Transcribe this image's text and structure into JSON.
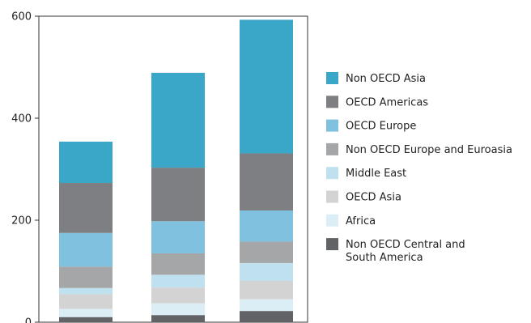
{
  "chart_data": {
    "type": "bar",
    "stacked": true,
    "categories": [
      "",
      "",
      ""
    ],
    "yticks": [
      "0",
      "200",
      "400",
      "600"
    ],
    "ylim": [
      0,
      600
    ],
    "title": "",
    "xlabel": "",
    "ylabel": "",
    "legend_position": "right",
    "series": [
      {
        "name": "Non OECD Central and South America",
        "color": "#626366",
        "values": [
          10,
          14,
          22
        ]
      },
      {
        "name": "Africa",
        "color": "#dbeef6",
        "values": [
          16,
          23,
          23
        ]
      },
      {
        "name": "OECD Asia",
        "color": "#d3d3d4",
        "values": [
          29,
          31,
          36
        ]
      },
      {
        "name": "Middle East",
        "color": "#bfe0ee",
        "values": [
          12,
          25,
          35
        ]
      },
      {
        "name": "Non OECD Europe and Euroasia",
        "color": "#a5a6a8",
        "values": [
          42,
          42,
          42
        ]
      },
      {
        "name": "OECD Europe",
        "color": "#7fc1de",
        "values": [
          66,
          63,
          61
        ]
      },
      {
        "name": "OECD Americas",
        "color": "#7e7f82",
        "values": [
          98,
          105,
          112
        ]
      },
      {
        "name": "Non OECD Asia",
        "color": "#3aa6c8",
        "values": [
          81,
          186,
          262
        ]
      }
    ]
  }
}
